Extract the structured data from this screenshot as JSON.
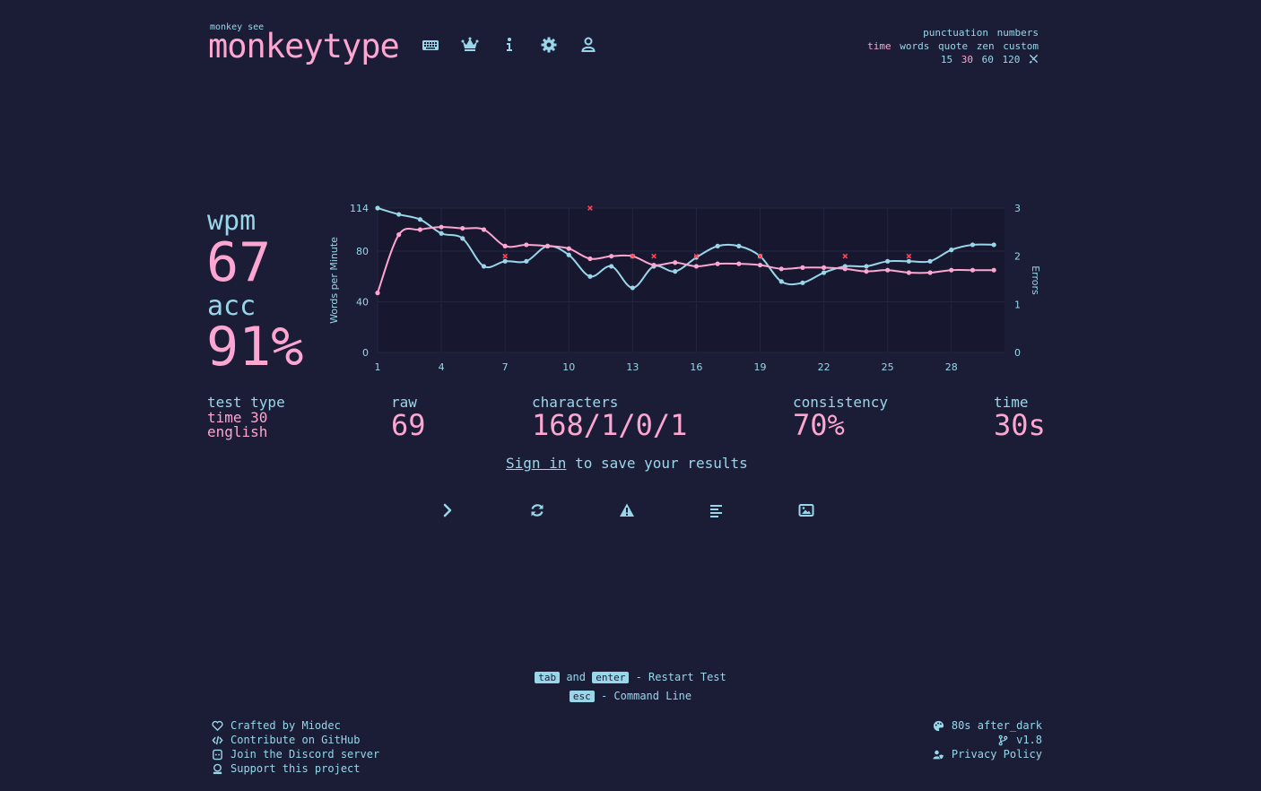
{
  "header": {
    "tagline": "monkey see",
    "logo": "monkeytype",
    "nav_icons": [
      "keyboard-icon",
      "crown-icon",
      "info-icon",
      "gear-icon",
      "user-icon"
    ]
  },
  "config": {
    "row1": [
      "punctuation",
      "numbers"
    ],
    "row2": [
      "time",
      "words",
      "quote",
      "zen",
      "custom"
    ],
    "row2_active": "time",
    "row3": [
      "15",
      "30",
      "60",
      "120"
    ],
    "row3_active": "30",
    "row3_icon": "tools-icon"
  },
  "result": {
    "wpm_label": "wpm",
    "wpm": "67",
    "acc_label": "acc",
    "acc": "91%",
    "test_type_label": "test type",
    "test_type_mode": "time 30",
    "test_type_language": "english",
    "raw_label": "raw",
    "raw": "69",
    "characters_label": "characters",
    "characters": "168/1/0/1",
    "consistency_label": "consistency",
    "consistency": "70%",
    "time_label": "time",
    "time": "30s"
  },
  "signin": {
    "link": "Sign in",
    "text": "to save your results"
  },
  "actions": [
    "next-test-icon",
    "restart-icon",
    "report-icon",
    "words-history-icon",
    "screenshot-icon"
  ],
  "keytips": {
    "key_tab": "tab",
    "and": "and",
    "key_enter": "enter",
    "restart": "- Restart Test",
    "key_esc": "esc",
    "command": "- Command Line"
  },
  "footer": {
    "left": [
      "Crafted by Miodec",
      "Contribute on GitHub",
      "Join the Discord server",
      "Support this project"
    ],
    "theme": "80s after_dark",
    "version": "v1.8",
    "privacy": "Privacy Policy"
  },
  "colors": {
    "bg": "#1b1d36",
    "main": "#fca6d1",
    "sub": "#99d6ea",
    "error": "#fe4450"
  },
  "chart_data": {
    "type": "line",
    "ylabel": "Words per Minute",
    "y2label": "Errors",
    "x": [
      1,
      2,
      3,
      4,
      5,
      6,
      7,
      8,
      9,
      10,
      11,
      12,
      13,
      14,
      15,
      16,
      17,
      18,
      19,
      20,
      21,
      22,
      23,
      24,
      25,
      26,
      27,
      28,
      29,
      30
    ],
    "xticks": [
      1,
      4,
      7,
      10,
      13,
      16,
      19,
      22,
      25,
      28
    ],
    "ylim": [
      0,
      114
    ],
    "yticks": [
      0,
      40,
      80,
      114
    ],
    "y2lim": [
      0,
      3
    ],
    "y2ticks": [
      0,
      1,
      2,
      3
    ],
    "series": [
      {
        "role": "wpm",
        "color": "#fca6d1",
        "values": [
          47,
          93,
          97,
          99,
          98,
          97,
          84,
          85,
          84,
          82,
          74,
          76,
          76,
          69,
          71,
          68,
          70,
          70,
          69,
          66,
          67,
          67,
          66,
          64,
          65,
          63,
          63,
          65,
          65,
          65
        ]
      },
      {
        "role": "raw",
        "color": "#99d6ea",
        "values": [
          114,
          109,
          105,
          94,
          90,
          68,
          72,
          72,
          84,
          77,
          60,
          68,
          51,
          68,
          64,
          75,
          84,
          84,
          76,
          56,
          55,
          63,
          68,
          68,
          72,
          72,
          72,
          81,
          85,
          85
        ]
      }
    ],
    "errors": [
      {
        "x": 7,
        "count": 2
      },
      {
        "x": 11,
        "count": 3
      },
      {
        "x": 13,
        "count": 2
      },
      {
        "x": 14,
        "count": 2
      },
      {
        "x": 16,
        "count": 2
      },
      {
        "x": 19,
        "count": 2
      },
      {
        "x": 23,
        "count": 2
      },
      {
        "x": 26,
        "count": 2
      }
    ],
    "grid": true
  }
}
